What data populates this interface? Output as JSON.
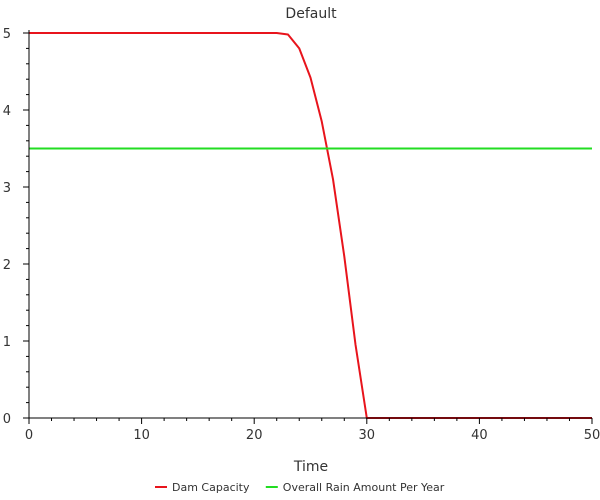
{
  "chart_data": {
    "type": "line",
    "title": "Default",
    "xlabel": "Time",
    "ylabel": "",
    "xlim": [
      0,
      50
    ],
    "ylim": [
      0,
      5
    ],
    "xticks": [
      0,
      10,
      20,
      30,
      40,
      50
    ],
    "yticks": [
      0,
      1,
      2,
      3,
      4,
      5
    ],
    "grid": false,
    "legend_position": "bottom",
    "series": [
      {
        "name": "Dam Capacity",
        "color": "#e8141c",
        "x": [
          0,
          1,
          2,
          3,
          4,
          5,
          6,
          7,
          8,
          9,
          10,
          11,
          12,
          13,
          14,
          15,
          16,
          17,
          18,
          19,
          20,
          21,
          22,
          23,
          24,
          25,
          26,
          27,
          28,
          29,
          30,
          31,
          32,
          33,
          34,
          35,
          36,
          37,
          38,
          39,
          40,
          41,
          42,
          43,
          44,
          45,
          46,
          47,
          48,
          49,
          50
        ],
        "values": [
          5,
          5,
          5,
          5,
          5,
          5,
          5,
          5,
          5,
          5,
          5,
          5,
          5,
          5,
          5,
          5,
          5,
          5,
          5,
          5,
          5,
          5,
          5,
          4.98,
          4.8,
          4.42,
          3.85,
          3.1,
          2.1,
          0.95,
          0,
          0,
          0,
          0,
          0,
          0,
          0,
          0,
          0,
          0,
          0,
          0,
          0,
          0,
          0,
          0,
          0,
          0,
          0,
          0,
          0
        ]
      },
      {
        "name": "Overall Rain Amount Per Year",
        "color": "#22dd22",
        "x": [
          0,
          50
        ],
        "values": [
          3.5,
          3.5
        ]
      }
    ]
  }
}
